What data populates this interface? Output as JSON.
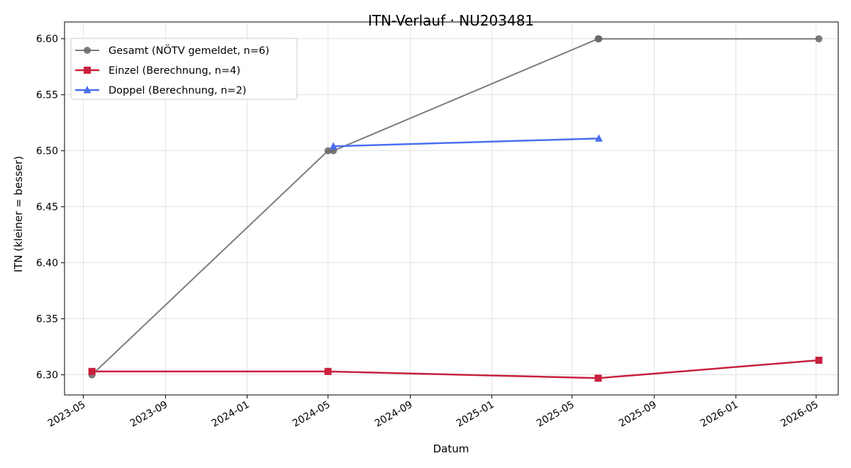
{
  "chart_data": {
    "type": "line",
    "title": "ITN-Verlauf · NU203481",
    "xlabel": "Datum",
    "ylabel": "ITN  (kleiner = besser)",
    "x_type": "date",
    "xlim": [
      "2023-04-03",
      "2026-06-03"
    ],
    "ylim": [
      6.282,
      6.615
    ],
    "x_ticks": [
      "2023-05-01",
      "2023-09-01",
      "2024-01-01",
      "2024-05-01",
      "2024-09-01",
      "2025-01-01",
      "2025-05-01",
      "2025-09-01",
      "2026-01-01",
      "2026-05-01"
    ],
    "x_tick_labels": [
      "2023-05",
      "2023-09",
      "2024-01",
      "2024-05",
      "2024-09",
      "2025-01",
      "2025-05",
      "2025-09",
      "2026-01",
      "2026-05"
    ],
    "y_ticks": [
      6.3,
      6.35,
      6.4,
      6.45,
      6.5,
      6.55,
      6.6
    ],
    "y_tick_labels": [
      "6.30",
      "6.35",
      "6.40",
      "6.45",
      "6.50",
      "6.55",
      "6.60"
    ],
    "grid": true,
    "legend_position": "top-left",
    "series": [
      {
        "name": "Gesamt (NÖTV gemeldet, n=6)",
        "color": "#666666",
        "marker": "circle",
        "points": [
          {
            "x": "2023-05-14",
            "y": 6.3
          },
          {
            "x": "2024-05-01",
            "y": 6.5
          },
          {
            "x": "2024-05-09",
            "y": 6.5
          },
          {
            "x": "2025-06-09",
            "y": 6.6
          },
          {
            "x": "2025-06-10",
            "y": 6.6
          },
          {
            "x": "2026-05-05",
            "y": 6.6
          }
        ]
      },
      {
        "name": "Einzel (Berechnung, n=4)",
        "color": "#c8203e",
        "marker": "square",
        "points": [
          {
            "x": "2023-05-14",
            "y": 6.303
          },
          {
            "x": "2024-05-01",
            "y": 6.303
          },
          {
            "x": "2025-06-09",
            "y": 6.297
          },
          {
            "x": "2026-05-05",
            "y": 6.313
          }
        ]
      },
      {
        "name": "Doppel (Berechnung, n=2)",
        "color": "#4a6ff0",
        "marker": "triangle",
        "points": [
          {
            "x": "2024-05-09",
            "y": 6.504
          },
          {
            "x": "2025-06-10",
            "y": 6.511
          }
        ]
      }
    ]
  }
}
